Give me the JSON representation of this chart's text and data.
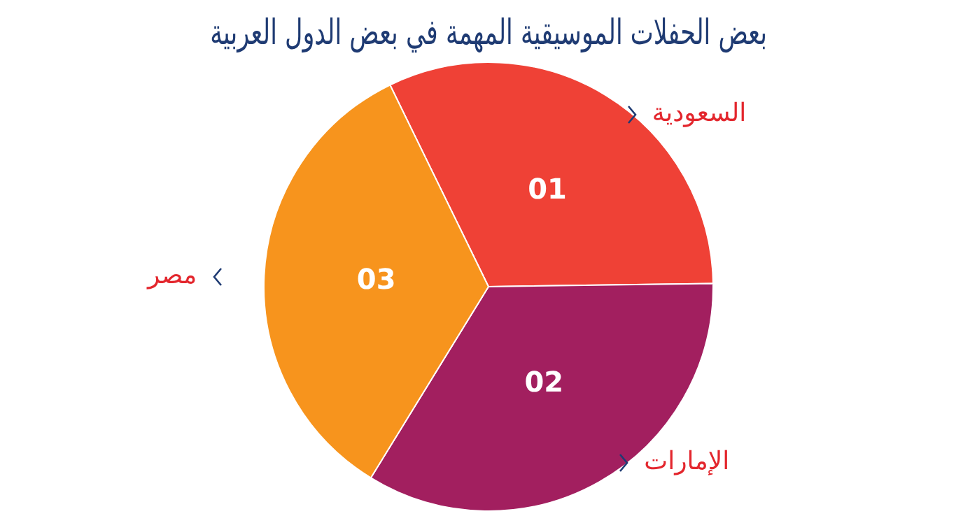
{
  "chart_data": {
    "type": "pie",
    "title": "بعض الحفلات الموسيقية المهمة في بعض الدول العربية",
    "categories": [
      "السعودية",
      "الإمارات",
      "مصر"
    ],
    "values": [
      32,
      34,
      34
    ],
    "colors": [
      "#ef4136",
      "#a21f5f",
      "#f7941d"
    ],
    "annotations": [
      {
        "text": "01",
        "x": "السعودية"
      },
      {
        "text": "02",
        "x": "الإمارات"
      },
      {
        "text": "03",
        "x": "مصر"
      }
    ],
    "legend": false
  }
}
